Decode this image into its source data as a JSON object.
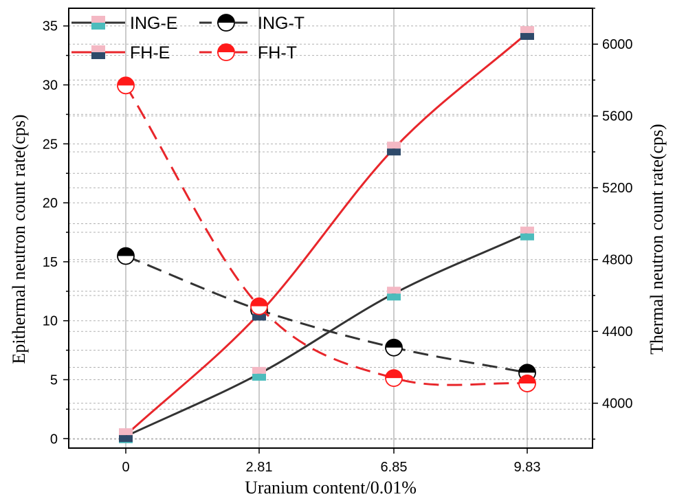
{
  "chart_data": {
    "type": "line",
    "xlabel": "Uranium content/0.01%",
    "ylabel_left": "Epithermal neutron count rate(cps)",
    "ylabel_right": "Thermal neutron count rate(cps)",
    "categories": [
      "0",
      "2.81",
      "6.85",
      "9.83"
    ],
    "ylim_left": [
      -0.8,
      36.5
    ],
    "ylim_right": [
      3750,
      6200
    ],
    "yticks_left": [
      0,
      5,
      10,
      15,
      20,
      25,
      30,
      35
    ],
    "yticks_right": [
      4000,
      4400,
      4800,
      5200,
      5600,
      6000
    ],
    "grid": true,
    "legend_position": "top-left",
    "colors": {
      "ing_line": "#333333",
      "ing_e_marker": "#4cbcbc",
      "ing_e_marker_top": "#f4b8c4",
      "fh_line": "#e8262b",
      "fh_e_marker": "#2e4a6a",
      "fh_e_marker_top": "#f4b8c4",
      "ing_t_marker": "#000000",
      "fh_t_marker": "#ff1a1a"
    },
    "series": [
      {
        "name": "ING-E",
        "axis": "left",
        "style": "solid",
        "marker": "square",
        "values": [
          0.2,
          5.5,
          12.3,
          17.4
        ]
      },
      {
        "name": "ING-T",
        "axis": "right",
        "style": "dashed",
        "marker": "half-circle",
        "values": [
          4820,
          4520,
          4310,
          4170
        ]
      },
      {
        "name": "FH-E",
        "axis": "left",
        "style": "solid",
        "marker": "square",
        "values": [
          0.3,
          10.6,
          24.6,
          34.4
        ]
      },
      {
        "name": "FH-T",
        "axis": "right",
        "style": "dashed",
        "marker": "half-circle",
        "values": [
          5770,
          4540,
          4140,
          4110
        ]
      }
    ]
  }
}
